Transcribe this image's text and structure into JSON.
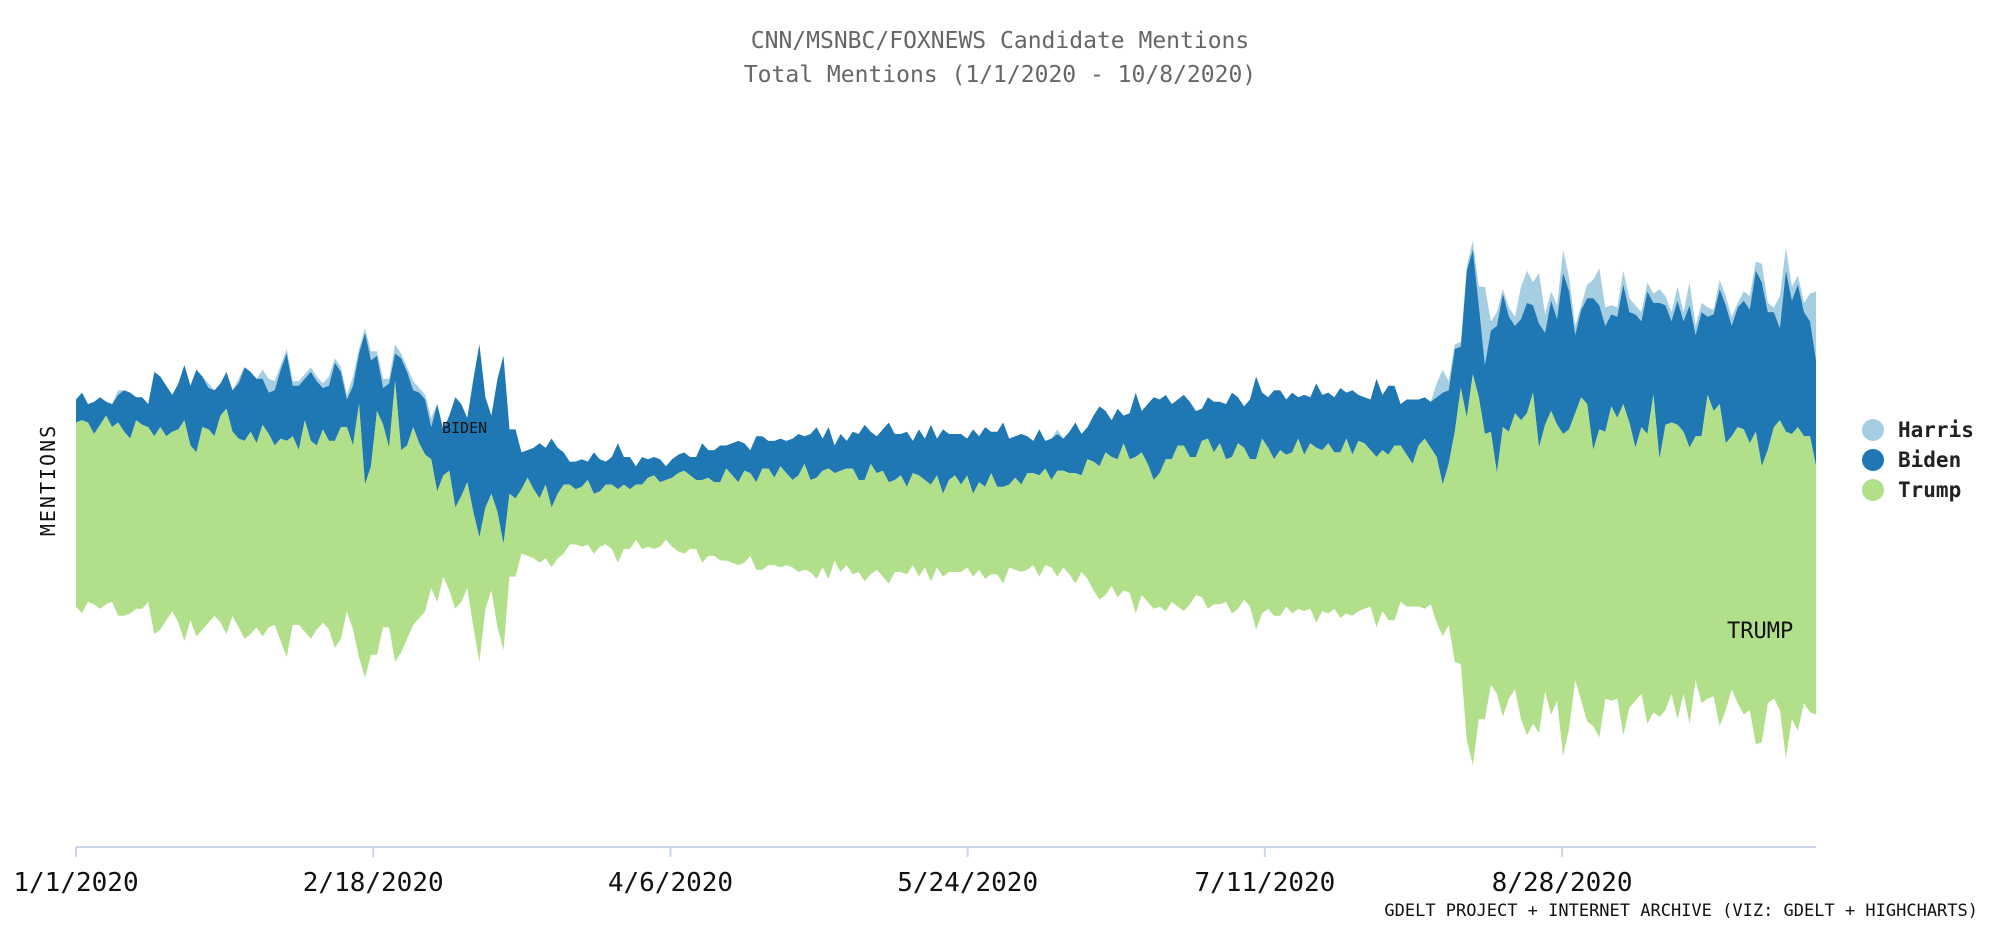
{
  "chart_data": {
    "type": "area",
    "title": "CNN/MSNBC/FOXNEWS Candidate Mentions",
    "subtitle": "Total Mentions (1/1/2020 - 10/8/2020)",
    "ylabel": "MENTIONS",
    "xlabel": "",
    "x_range": [
      "1/1/2020",
      "10/8/2020"
    ],
    "x_ticks": [
      "1/1/2020",
      "2/18/2020",
      "4/6/2020",
      "5/24/2020",
      "7/11/2020",
      "8/28/2020"
    ],
    "stacking": "streamgraph",
    "legend_position": "right",
    "series": [
      {
        "name": "Harris",
        "color": "#a6cee3",
        "values": [
          0,
          0,
          0,
          0,
          0,
          0,
          0,
          1,
          0,
          0,
          0,
          0,
          0,
          0,
          0,
          0,
          0,
          0,
          0,
          0,
          0,
          0,
          1,
          0,
          0,
          0,
          0,
          1,
          0,
          0,
          0,
          2,
          3,
          2,
          1,
          1,
          1,
          1,
          1,
          1,
          1,
          1,
          2,
          1,
          1,
          1,
          2,
          1,
          1,
          2,
          1,
          2,
          1,
          2,
          1,
          1,
          2,
          1,
          1,
          2,
          0,
          0,
          0,
          0,
          0,
          0,
          0,
          0,
          0,
          0,
          0,
          0,
          0,
          0,
          0,
          0,
          0,
          0,
          0,
          0,
          0,
          0,
          0,
          0,
          0,
          0,
          0,
          0,
          0,
          0,
          0,
          0,
          0,
          0,
          0,
          0,
          0,
          0,
          0,
          0,
          0,
          0,
          0,
          0,
          0,
          0,
          0,
          0,
          0,
          0,
          0,
          0,
          0,
          0,
          0,
          0,
          0,
          0,
          0,
          0,
          0,
          0,
          0,
          0,
          0,
          0,
          0,
          0,
          0,
          0,
          0,
          0,
          0,
          0,
          0,
          0,
          0,
          0,
          0,
          0,
          0,
          0,
          0,
          0,
          0,
          0,
          0,
          0,
          0,
          0,
          0,
          0,
          0,
          0,
          0,
          0,
          0,
          0,
          0,
          0,
          0,
          0,
          0,
          1,
          0,
          0,
          0,
          0,
          0,
          0,
          0,
          0,
          0,
          0,
          0,
          0,
          0,
          0,
          0,
          0,
          0,
          0,
          0,
          0,
          0,
          0,
          0,
          0,
          0,
          0,
          0,
          0,
          0,
          0,
          0,
          0,
          0,
          0,
          0,
          0,
          0,
          0,
          0,
          0,
          0,
          0,
          0,
          0,
          0,
          0,
          0,
          0,
          0,
          0,
          0,
          0,
          0,
          0,
          0,
          0,
          0,
          0,
          0,
          0,
          0,
          0,
          3,
          5,
          2,
          1,
          1,
          1,
          2,
          4,
          17,
          2,
          3,
          1,
          2,
          2,
          7,
          7,
          5,
          11,
          4,
          2,
          3,
          5,
          3,
          2,
          1,
          3,
          4,
          8,
          4,
          2,
          2,
          3,
          3,
          2,
          2,
          2,
          2,
          3,
          2,
          2,
          3,
          2,
          5,
          2,
          2,
          2,
          1,
          2,
          2,
          2,
          1,
          2,
          3,
          2,
          4,
          2,
          1,
          7,
          5,
          3,
          2,
          2,
          6,
          15
        ]
      },
      {
        "name": "Biden",
        "color": "#1f78b4",
        "values": [
          5,
          6,
          4,
          7,
          6,
          3,
          5,
          6,
          9,
          10,
          5,
          6,
          5,
          14,
          11,
          11,
          8,
          10,
          12,
          13,
          18,
          11,
          9,
          10,
          7,
          8,
          9,
          12,
          16,
          13,
          14,
          10,
          9,
          12,
          15,
          19,
          11,
          14,
          9,
          15,
          14,
          9,
          12,
          17,
          12,
          6,
          13,
          11,
          33,
          23,
          12,
          8,
          14,
          6,
          20,
          16,
          8,
          11,
          12,
          7,
          19,
          10,
          12,
          24,
          20,
          14,
          29,
          42,
          24,
          17,
          29,
          41,
          14,
          15,
          8,
          6,
          9,
          12,
          8,
          15,
          10,
          7,
          5,
          6,
          6,
          4,
          9,
          7,
          5,
          6,
          10,
          6,
          7,
          4,
          6,
          4,
          4,
          5,
          3,
          4,
          4,
          4,
          4,
          5,
          8,
          6,
          7,
          8,
          5,
          7,
          9,
          6,
          5,
          10,
          7,
          6,
          8,
          6,
          7,
          9,
          9,
          6,
          10,
          11,
          7,
          9,
          6,
          8,
          6,
          8,
          10,
          12,
          7,
          8,
          9,
          13,
          10,
          9,
          12,
          7,
          10,
          9,
          13,
          8,
          14,
          10,
          9,
          11,
          8,
          14,
          10,
          13,
          9,
          12,
          14,
          10,
          9,
          11,
          8,
          7,
          10,
          6,
          9,
          8,
          7,
          9,
          11,
          9,
          7,
          10,
          13,
          9,
          8,
          11,
          6,
          10,
          14,
          9,
          13,
          18,
          16,
          14,
          12,
          10,
          11,
          12,
          10,
          7,
          9,
          11,
          9,
          12,
          14,
          10,
          9,
          13,
          18,
          10,
          11,
          15,
          13,
          12,
          13,
          9,
          13,
          10,
          14,
          12,
          11,
          12,
          14,
          10,
          14,
          10,
          10,
          11,
          17,
          12,
          15,
          13,
          9,
          12,
          14,
          10,
          9,
          10,
          13,
          20,
          16,
          18,
          9,
          32,
          27,
          20,
          15,
          22,
          32,
          29,
          25,
          19,
          22,
          24,
          19,
          27,
          20,
          24,
          23,
          35,
          30,
          17,
          19,
          23,
          33,
          27,
          23,
          20,
          22,
          26,
          24,
          29,
          23,
          31,
          20,
          34,
          26,
          22,
          27,
          24,
          31,
          22,
          27,
          17,
          21,
          25,
          30,
          24,
          26,
          28,
          29,
          35,
          40,
          30,
          25,
          20,
          35,
          29,
          31,
          27,
          25,
          23,
          32,
          34
        ]
      },
      {
        "name": "Trump",
        "color": "#b2df8a",
        "values": [
          40,
          42,
          39,
          37,
          40,
          41,
          38,
          42,
          40,
          38,
          41,
          40,
          38,
          43,
          44,
          40,
          39,
          42,
          48,
          38,
          40,
          44,
          42,
          39,
          45,
          49,
          40,
          41,
          43,
          44,
          40,
          46,
          42,
          39,
          44,
          47,
          41,
          38,
          46,
          43,
          40,
          42,
          41,
          45,
          46,
          40,
          40,
          55,
          42,
          41,
          53,
          44,
          39,
          61,
          44,
          42,
          43,
          38,
          34,
          28,
          24,
          22,
          26,
          22,
          23,
          23,
          25,
          27,
          22,
          21,
          25,
          23,
          18,
          17,
          14,
          17,
          15,
          14,
          16,
          13,
          14,
          15,
          13,
          12,
          13,
          14,
          13,
          12,
          13,
          14,
          16,
          14,
          13,
          12,
          14,
          15,
          16,
          14,
          13,
          15,
          17,
          18,
          16,
          15,
          18,
          17,
          16,
          17,
          20,
          19,
          18,
          20,
          18,
          19,
          22,
          21,
          19,
          22,
          20,
          19,
          21,
          23,
          20,
          22,
          21,
          24,
          19,
          22,
          21,
          23,
          20,
          22,
          24,
          21,
          23,
          22,
          20,
          21,
          19,
          20,
          22,
          19,
          21,
          20,
          18,
          20,
          21,
          19,
          20,
          18,
          19,
          20,
          22,
          19,
          21,
          18,
          20,
          19,
          21,
          20,
          22,
          21,
          19,
          23,
          21,
          22,
          24,
          21,
          26,
          28,
          29,
          31,
          28,
          30,
          32,
          29,
          34,
          31,
          30,
          28,
          29,
          33,
          31,
          35,
          36,
          32,
          30,
          34,
          37,
          33,
          35,
          31,
          34,
          36,
          33,
          32,
          37,
          38,
          35,
          34,
          36,
          33,
          35,
          37,
          34,
          36,
          38,
          35,
          37,
          34,
          36,
          38,
          35,
          37,
          36,
          34,
          37,
          35,
          36,
          38,
          34,
          33,
          31,
          35,
          37,
          34,
          36,
          33,
          35,
          50,
          60,
          70,
          85,
          70,
          62,
          55,
          48,
          63,
          58,
          60,
          65,
          70,
          72,
          62,
          58,
          66,
          60,
          70,
          65,
          58,
          66,
          69,
          60,
          67,
          58,
          64,
          61,
          72,
          62,
          55,
          58,
          63,
          69,
          56,
          62,
          59,
          64,
          57,
          60,
          53,
          58,
          66,
          62,
          70,
          58,
          55,
          60,
          62,
          58,
          68,
          60,
          55,
          59,
          63,
          71,
          62,
          66,
          58,
          60,
          54,
          55,
          60,
          58,
          62,
          66,
          63
        ]
      }
    ],
    "annotations": [
      "BIDEN",
      "TRUMP"
    ]
  },
  "credits": "GDELT PROJECT + INTERNET ARCHIVE (VIZ: GDELT + HIGHCHARTS)"
}
